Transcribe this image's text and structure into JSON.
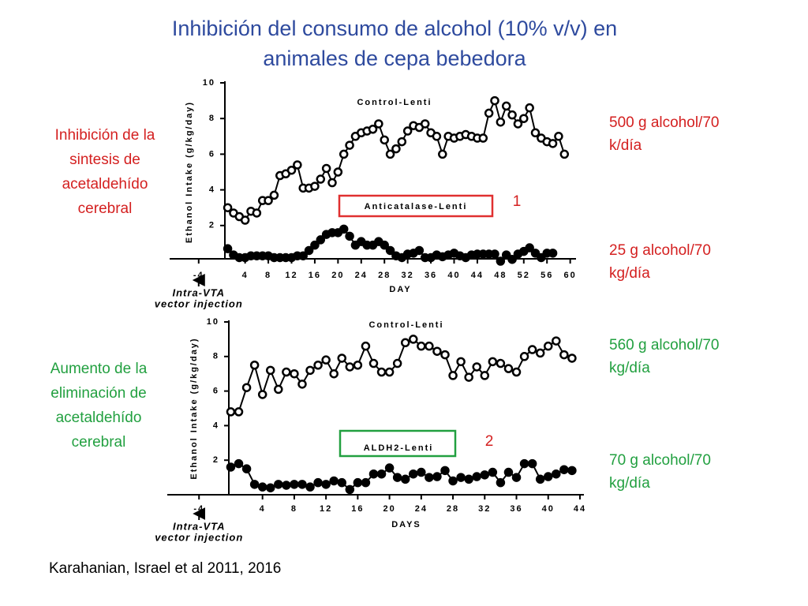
{
  "title": [
    "Inhibición del consumo de alcohol (10% v/v) en",
    "animales de cepa bebedora"
  ],
  "title_color": "#2e4a9e",
  "side_labels": [
    {
      "lines": [
        "Inhibición de la",
        "sintesis de",
        "acetaldehído",
        "cerebral"
      ],
      "color": "#d42020"
    },
    {
      "lines": [
        "Aumento de la",
        "eliminación de",
        "acetaldehído",
        "cerebral"
      ],
      "color": "#22a040"
    }
  ],
  "dose_labels": [
    {
      "lines": [
        "500 g alcohol/70",
        "k/día"
      ],
      "color": "#d42020"
    },
    {
      "lines": [
        "25 g alcohol/70",
        "kg/día"
      ],
      "color": "#d42020"
    },
    {
      "lines": [
        "560 g alcohol/70",
        "kg/día"
      ],
      "color": "#22a040"
    },
    {
      "lines": [
        "70 g alcohol/70",
        "kg/día"
      ],
      "color": "#22a040"
    }
  ],
  "citation": "Karahanian, Israel et al 2011, 2016",
  "chart_data": [
    {
      "type": "line",
      "ylabel": "Ethanol Intake (g/kg/day)",
      "xlabel": "DAY",
      "xlim": [
        -9,
        61
      ],
      "ylim": [
        0,
        10
      ],
      "xticks": [
        -4,
        4,
        8,
        12,
        16,
        20,
        24,
        28,
        32,
        36,
        40,
        44,
        48,
        52,
        56,
        60
      ],
      "yticks": [
        2,
        4,
        6,
        8,
        10
      ],
      "annotation": {
        "lines": [
          "Intra-VTA",
          "vector injection"
        ],
        "x": -4
      },
      "tag": "1",
      "tag_color": "#d42020",
      "series": [
        {
          "name": "Control-Lenti",
          "color": "#000000",
          "marker": "open",
          "x": [
            1,
            2,
            3,
            4,
            5,
            6,
            7,
            8,
            9,
            10,
            11,
            12,
            13,
            14,
            15,
            16,
            17,
            18,
            19,
            20,
            21,
            22,
            23,
            24,
            25,
            26,
            27,
            28,
            29,
            30,
            31,
            32,
            33,
            34,
            35,
            36,
            37,
            38,
            39,
            40,
            41,
            42,
            43,
            44,
            45,
            46,
            47,
            48,
            49,
            50,
            51,
            52,
            53,
            54,
            55,
            56,
            57,
            58,
            59
          ],
          "values": [
            3.0,
            2.7,
            2.5,
            2.3,
            2.8,
            2.7,
            3.4,
            3.4,
            3.7,
            4.8,
            4.9,
            5.1,
            5.4,
            4.1,
            4.1,
            4.2,
            4.6,
            5.2,
            4.4,
            5.0,
            6.0,
            6.5,
            7.0,
            7.2,
            7.3,
            7.4,
            7.7,
            6.8,
            6.0,
            6.3,
            6.7,
            7.3,
            7.6,
            7.5,
            7.7,
            7.2,
            7.0,
            6.0,
            7.0,
            6.9,
            7.0,
            7.1,
            7.0,
            6.9,
            6.9,
            8.3,
            9.0,
            7.8,
            8.7,
            8.2,
            7.7,
            8.0,
            8.6,
            7.2,
            6.9,
            6.7,
            6.6,
            7.0,
            6.0
          ]
        },
        {
          "name": "Anticatalase-Lenti",
          "color": "#000000",
          "marker": "filled",
          "box_color": "#e03030",
          "x": [
            1,
            2,
            3,
            4,
            5,
            6,
            7,
            8,
            9,
            10,
            11,
            12,
            13,
            14,
            15,
            16,
            17,
            18,
            19,
            20,
            21,
            22,
            23,
            24,
            25,
            26,
            27,
            28,
            29,
            30,
            31,
            32,
            33,
            34,
            35,
            36,
            37,
            38,
            39,
            40,
            41,
            42,
            43,
            44,
            45,
            46,
            47,
            48,
            49,
            50,
            51,
            52,
            53,
            54,
            55,
            56,
            57
          ],
          "values": [
            0.7,
            0.35,
            0.2,
            0.2,
            0.3,
            0.3,
            0.3,
            0.3,
            0.2,
            0.2,
            0.2,
            0.2,
            0.3,
            0.3,
            0.6,
            0.9,
            1.2,
            1.5,
            1.6,
            1.6,
            1.8,
            1.4,
            0.9,
            1.1,
            0.9,
            0.9,
            1.1,
            0.9,
            0.6,
            0.3,
            0.2,
            0.4,
            0.45,
            0.6,
            0.2,
            0.2,
            0.35,
            0.25,
            0.35,
            0.45,
            0.3,
            0.2,
            0.35,
            0.4,
            0.4,
            0.4,
            0.4,
            0.0,
            0.35,
            0.1,
            0.4,
            0.55,
            0.75,
            0.45,
            0.2,
            0.45,
            0.45
          ]
        }
      ]
    },
    {
      "type": "line",
      "ylabel": "Ethanol Intake (g/kg/day)",
      "xlabel": "DAYS",
      "xlim": [
        -8,
        44.5
      ],
      "ylim": [
        0,
        10
      ],
      "xticks": [
        -4,
        4,
        8,
        12,
        16,
        20,
        24,
        28,
        32,
        36,
        40,
        44
      ],
      "yticks": [
        2,
        4,
        6,
        8,
        10
      ],
      "annotation": {
        "lines": [
          "Intra-VTA",
          "vector injection"
        ],
        "x": -4
      },
      "tag": "2",
      "tag_color": "#d42020",
      "series": [
        {
          "name": "Control-Lenti",
          "color": "#000000",
          "marker": "open",
          "x": [
            0,
            1,
            2,
            3,
            4,
            5,
            6,
            7,
            8,
            9,
            10,
            11,
            12,
            13,
            14,
            15,
            16,
            17,
            18,
            19,
            20,
            21,
            22,
            23,
            24,
            25,
            26,
            27,
            28,
            29,
            30,
            31,
            32,
            33,
            34,
            35,
            36,
            37,
            38,
            39,
            40,
            41,
            42,
            43
          ],
          "values": [
            4.8,
            4.8,
            6.2,
            7.5,
            5.8,
            7.2,
            6.1,
            7.1,
            7.0,
            6.4,
            7.2,
            7.5,
            7.8,
            7.0,
            7.9,
            7.4,
            7.5,
            8.6,
            7.6,
            7.1,
            7.1,
            7.6,
            8.8,
            9.0,
            8.6,
            8.6,
            8.3,
            8.1,
            6.9,
            7.7,
            6.8,
            7.4,
            6.9,
            7.7,
            7.6,
            7.3,
            7.1,
            8.0,
            8.4,
            8.2,
            8.6,
            8.9,
            8.1,
            7.9
          ]
        },
        {
          "name": "ALDH2-Lenti",
          "color": "#000000",
          "marker": "filled",
          "box_color": "#22a040",
          "x": [
            0,
            1,
            2,
            3,
            4,
            5,
            6,
            7,
            8,
            9,
            10,
            11,
            12,
            13,
            14,
            15,
            16,
            17,
            18,
            19,
            20,
            21,
            22,
            23,
            24,
            25,
            26,
            27,
            28,
            29,
            30,
            31,
            32,
            33,
            34,
            35,
            36,
            37,
            38,
            39,
            40,
            41,
            42,
            43
          ],
          "values": [
            1.6,
            1.8,
            1.5,
            0.6,
            0.45,
            0.4,
            0.6,
            0.55,
            0.6,
            0.6,
            0.45,
            0.7,
            0.6,
            0.8,
            0.7,
            0.3,
            0.7,
            0.7,
            1.2,
            1.2,
            1.55,
            1.0,
            0.9,
            1.2,
            1.3,
            1.0,
            1.05,
            1.4,
            0.8,
            1.0,
            0.9,
            1.05,
            1.15,
            1.3,
            0.7,
            1.3,
            1.0,
            1.8,
            1.8,
            0.9,
            1.05,
            1.2,
            1.45,
            1.4
          ]
        }
      ]
    }
  ]
}
